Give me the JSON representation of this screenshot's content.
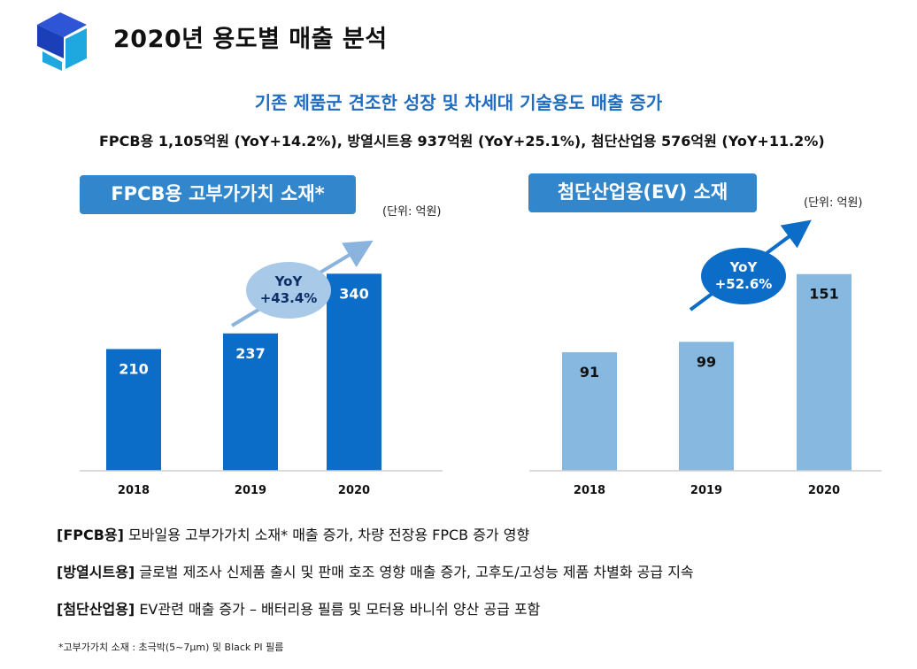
{
  "header": {
    "title": "2020년 용도별 매출 분석",
    "logo_icon": "cube-logo-icon",
    "brand_colors": [
      "#2e55d6",
      "#1fa8e0",
      "#1a3fb8"
    ]
  },
  "subtitle": "기존 제품군 견조한 성장 및 차세대 기술용도 매출 증가",
  "summary": "FPCB용 1,105억원 (YoY+14.2%), 방열시트용 937억원 (YoY+25.1%), 첨단산업용 576억원 (YoY+11.2%)",
  "chart_data": [
    {
      "type": "bar",
      "title": "FPCB용 고부가가치 소재*",
      "unit_label": "(단위: 억원)",
      "categories": [
        "2018",
        "2019",
        "2020"
      ],
      "values": [
        210,
        237,
        340
      ],
      "ylim": [
        0,
        400
      ],
      "grid": false,
      "bar_color": "#0b6dc8",
      "value_label_color": "#ffffff",
      "annotation": {
        "line1": "YoY",
        "line2": "+43.4%",
        "bubble_color": "#a8c9e8",
        "text_color": "#0d2f66",
        "arrow_color": "#8ab4dd"
      }
    },
    {
      "type": "bar",
      "title": "첨단산업용(EV)  소재",
      "unit_label": "(단위: 억원)",
      "categories": [
        "2018",
        "2019",
        "2020"
      ],
      "values": [
        91,
        99,
        151
      ],
      "ylim": [
        0,
        178
      ],
      "grid": false,
      "bar_color": "#86b8e0",
      "value_label_color": "#111111",
      "annotation": {
        "line1": "YoY",
        "line2": "+52.6%",
        "bubble_color": "#0b6dc8",
        "text_color": "#ffffff",
        "arrow_color": "#0b6dc8"
      }
    }
  ],
  "notes": [
    {
      "tag": "[FPCB용]",
      "text": " 모바일용 고부가가치 소재* 매출 증가, 차량 전장용 FPCB 증가 영향"
    },
    {
      "tag": "[방열시트용]",
      "text": " 글로벌 제조사 신제품 출시 및 판매 호조 영향 매출 증가, 고후도/고성능 제품 차별화 공급 지속"
    },
    {
      "tag": "[첨단산업용]",
      "text": " EV관련 매출 증가 – 배터리용 필름 및 모터용 바니쉬 양산 공급 포함"
    }
  ],
  "footnote": "*고부가가치 소재 : 초극박(5~7μm) 및 Black PI 필름"
}
